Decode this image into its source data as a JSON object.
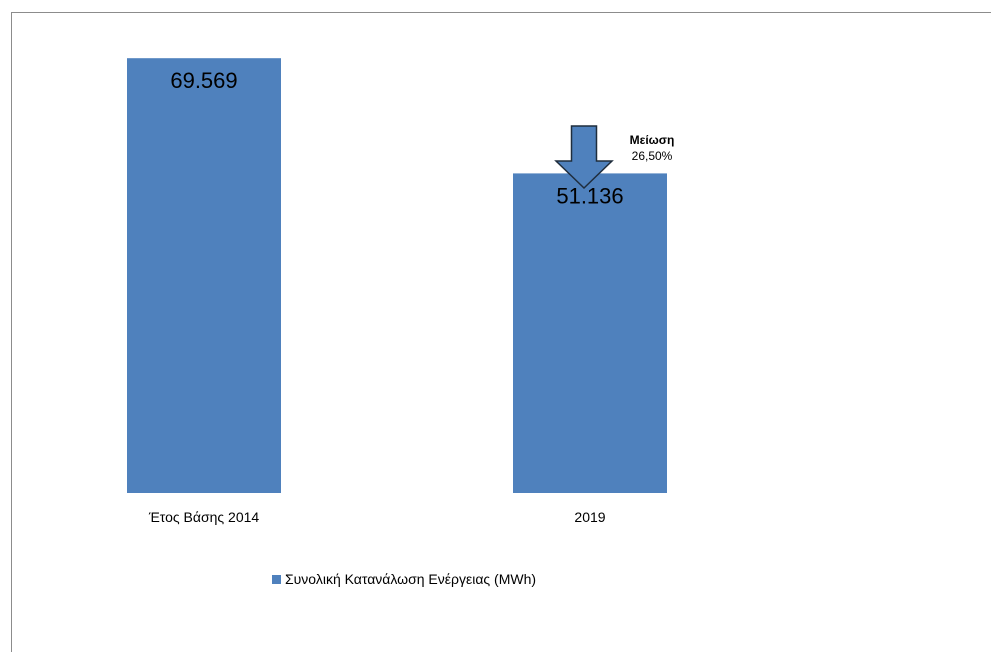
{
  "chart_data": {
    "type": "bar",
    "categories": [
      "Έτος Βάσης 2014",
      "2019"
    ],
    "series": [
      {
        "name": "Συνολική Κατανάλωση Ενέργειας (MWh)",
        "values": [
          69569,
          51136
        ],
        "value_labels": [
          "69.569",
          "51.136"
        ]
      }
    ],
    "title": "",
    "xlabel": "",
    "ylabel": "",
    "ylim": [
      0,
      80000
    ],
    "grid": false,
    "legend_position": "bottom",
    "annotation": {
      "type": "down-arrow",
      "title": "Μείωση",
      "value": "26,50%"
    },
    "colors": {
      "bar": "#4f81bd",
      "arrow_fill": "#4f81bd",
      "arrow_stroke": "#1f2d3d",
      "text": "#000000",
      "frame": "#8c8c8c"
    }
  }
}
